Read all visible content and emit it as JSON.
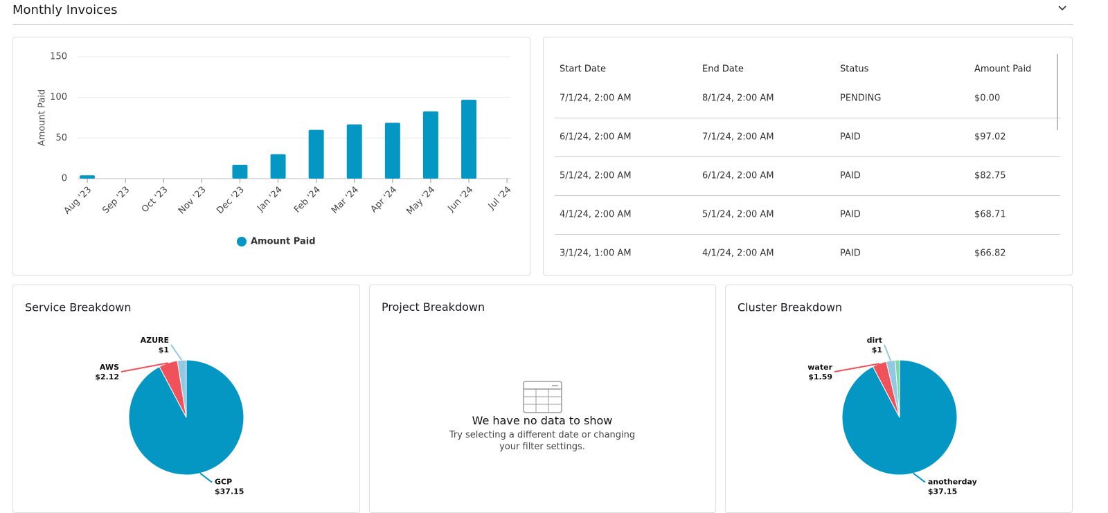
{
  "header": {
    "title": "Monthly Invoices"
  },
  "chart_data": [
    {
      "type": "bar",
      "categories": [
        "Aug '23",
        "Sep '23",
        "Oct '23",
        "Nov '23",
        "Dec '23",
        "Jan '24",
        "Feb '24",
        "Mar '24",
        "Apr '24",
        "May '24",
        "Jun '24",
        "Jul '24"
      ],
      "series": [
        {
          "name": "Amount Paid",
          "color": "#0497c4",
          "values": [
            4,
            0,
            0,
            0,
            17,
            30,
            60,
            66.82,
            68.71,
            82.75,
            97.02,
            0
          ]
        }
      ],
      "y_label": "Amount Paid",
      "ylim": [
        0,
        150
      ],
      "yticks": [
        0,
        50,
        100,
        150
      ],
      "grid": true,
      "legend": "bottom"
    },
    {
      "type": "pie",
      "title": "Service Breakdown",
      "categories": [
        "GCP",
        "AWS",
        "AZURE"
      ],
      "values": [
        37.15,
        2.12,
        1
      ],
      "value_labels": [
        "$37.15",
        "$2.12",
        "$1"
      ],
      "colors": [
        "#0497c4",
        "#f0525c",
        "#93c8e2"
      ]
    },
    {
      "type": "pie",
      "title": "Cluster Breakdown",
      "categories": [
        "anotherday",
        "water",
        "dirt",
        null
      ],
      "values": [
        37.15,
        1.59,
        1,
        0.5
      ],
      "value_labels": [
        "$37.15",
        "$1.59",
        "$1",
        null
      ],
      "colors": [
        "#0497c4",
        "#f0525c",
        "#93c8e2",
        "#7ed8a4"
      ]
    }
  ],
  "invoice_table": {
    "columns": [
      "Start Date",
      "End Date",
      "Status",
      "Amount Paid"
    ],
    "rows": [
      [
        "7/1/24, 2:00 AM",
        "8/1/24, 2:00 AM",
        "PENDING",
        "$0.00"
      ],
      [
        "6/1/24, 2:00 AM",
        "7/1/24, 2:00 AM",
        "PAID",
        "$97.02"
      ],
      [
        "5/1/24, 2:00 AM",
        "6/1/24, 2:00 AM",
        "PAID",
        "$82.75"
      ],
      [
        "4/1/24, 2:00 AM",
        "5/1/24, 2:00 AM",
        "PAID",
        "$68.71"
      ],
      [
        "3/1/24, 1:00 AM",
        "4/1/24, 2:00 AM",
        "PAID",
        "$66.82"
      ]
    ]
  },
  "project_breakdown": {
    "title": "Project Breakdown",
    "empty_title": "We have no data to show",
    "empty_text": "Try selecting a different date or changing your filter settings."
  }
}
